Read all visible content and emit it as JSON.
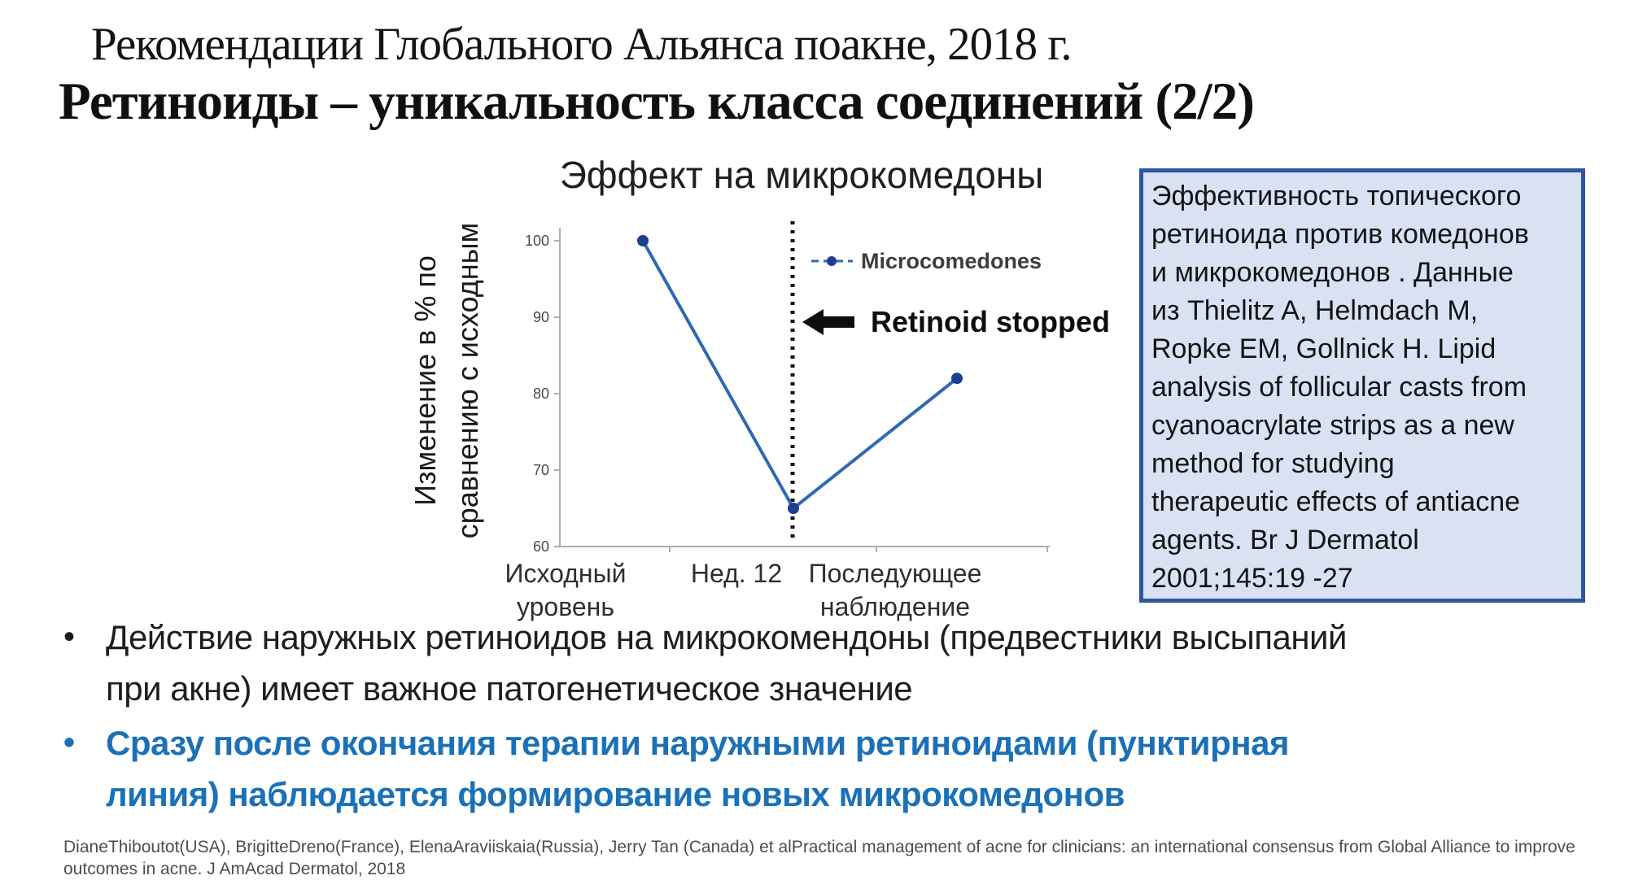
{
  "slide": {
    "title_line1": "Рекомендации Глобального Альянса поакне, 2018 г.",
    "title_line2": "Ретиноиды – уникальность класса соединений (2/2)",
    "reference_box_text": "Эффективность топического\nретиноида против комедонов\nи микрокомедонов . Данные\nиз Thielitz A, Helmdach M,\nRopke EM, Gollnick H. Lipid\nanalysis  of follicular casts from\ncyanoacrylate strips as a new\nmethod for studying\ntherapeutic effects of antiacne\nagents. Br J Dermatol\n2001;145:19 -27",
    "bullets": [
      {
        "marker": "•",
        "text": "Действие наружных  ретиноидов на микрокомендоны (предвестники высыпаний\nпри акне) имеет важное патогенетическое значение"
      },
      {
        "marker": "•",
        "text": "Сразу после окончания терапии наружными  ретиноидами  (пунктирная\nлиния) наблюдается формирование новых  микрокомедонов"
      }
    ],
    "footer": "DianeThiboutot(USA), BrigitteDreno(France), ElenaAraviiskaia(Russia), Jerry Tan (Canada) et alPractical management of acne for clinicians: an international consensus from Global Alliance to improve\noutcomes in acne. J AmAcad Dermatol, 2018"
  },
  "chart_data": {
    "type": "line",
    "title": "Эффект на микрокомедоны",
    "ylabel_line1": "Изменение в % по",
    "ylabel_line2": "сравнению с исходным",
    "categories": [
      "Исходный уровень",
      "Нед. 12",
      "Последующее наблюдение"
    ],
    "x_tick_labels": [
      {
        "line1": "Исходный",
        "line2": "уровень"
      },
      {
        "line1": "Нед. 12",
        "line2": ""
      },
      {
        "line1": "Последующее",
        "line2": "наблюдение"
      }
    ],
    "series": [
      {
        "name": "Microcomedones",
        "values": [
          100,
          65,
          82
        ]
      }
    ],
    "y_ticks": [
      100,
      90,
      80,
      70,
      60
    ],
    "ylim": [
      60,
      100
    ],
    "grid": false,
    "legend_position": "inside-top-right",
    "annotation": "Retinoid stopped",
    "line_color": "#2f6ab0",
    "marker_color": "#1c3f8f"
  },
  "colors": {
    "page_bg": "#ffffff",
    "title_text": "#141414",
    "accent_blue_text": "#1b71b8",
    "box_bg": "#d9e2f3",
    "box_border": "#2e55a3",
    "axis": "#a9b2a9",
    "dotted_line": "#141414",
    "footer_text": "#4d4d4d"
  }
}
